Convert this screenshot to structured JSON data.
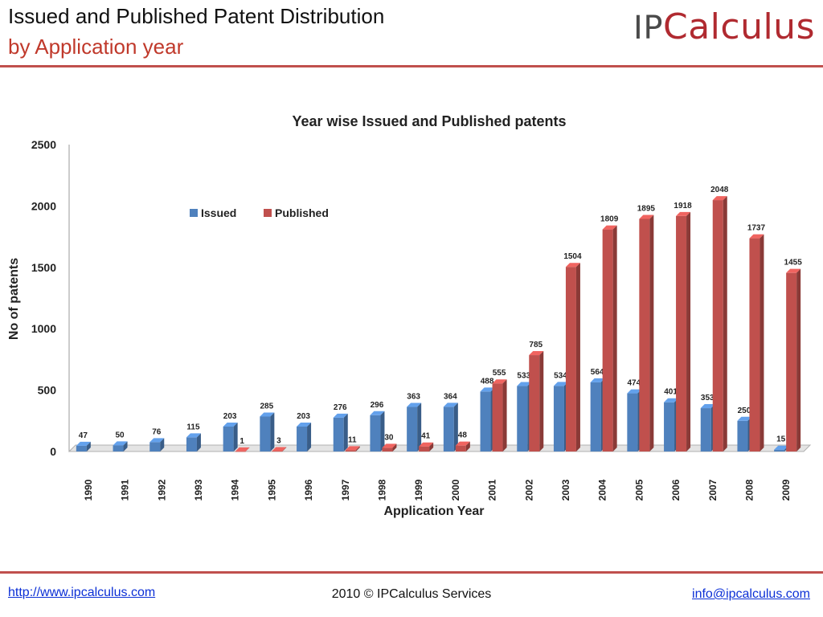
{
  "header": {
    "title": "Issued and Published Patent Distribution",
    "subtitle": "by Application year",
    "logo_ip": "IP",
    "logo_rest": "Calculus"
  },
  "footer": {
    "website": "http://www.ipcalculus.com",
    "copyright": "2010 © IPCalculus Services",
    "email": "info@ipcalculus.com"
  },
  "colors": {
    "accent_rule": "#c0504d",
    "issued": "#4f81bd",
    "published": "#c0504d",
    "link": "#0b2fd6"
  },
  "chart_data": {
    "type": "bar",
    "title": "Year wise Issued and Published patents",
    "xlabel": "Application Year",
    "ylabel": "No of patents",
    "ylim": [
      0,
      2500
    ],
    "yticks": [
      0,
      500,
      1000,
      1500,
      2000,
      2500
    ],
    "grid": false,
    "legend_position": "top-left",
    "categories": [
      "1990",
      "1991",
      "1992",
      "1993",
      "1994",
      "1995",
      "1996",
      "1997",
      "1998",
      "1999",
      "2000",
      "2001",
      "2002",
      "2003",
      "2004",
      "2005",
      "2006",
      "2007",
      "2008",
      "2009"
    ],
    "series": [
      {
        "name": "Issued",
        "values": [
          47,
          50,
          76,
          115,
          203,
          285,
          203,
          276,
          296,
          363,
          364,
          488,
          533,
          534,
          564,
          474,
          401,
          353,
          250,
          15
        ],
        "labels": [
          "47",
          "50",
          "76",
          "115",
          "203",
          "285",
          "203",
          "276",
          "296",
          "363",
          "364",
          "488",
          "533",
          "534",
          "564",
          "474",
          "401",
          "353",
          "250",
          "15"
        ]
      },
      {
        "name": "Published",
        "values": [
          0,
          0,
          0,
          0,
          1,
          3,
          0,
          11,
          30,
          41,
          48,
          555,
          785,
          1504,
          1809,
          1895,
          1918,
          2048,
          1737,
          1455
        ],
        "labels": [
          "",
          "",
          "",
          "",
          "1",
          "3",
          "",
          "11",
          "30",
          "41",
          "48",
          "555",
          "785",
          "1504",
          "1809",
          "1895",
          "1918",
          "2048",
          "1737",
          "1455"
        ]
      }
    ]
  }
}
